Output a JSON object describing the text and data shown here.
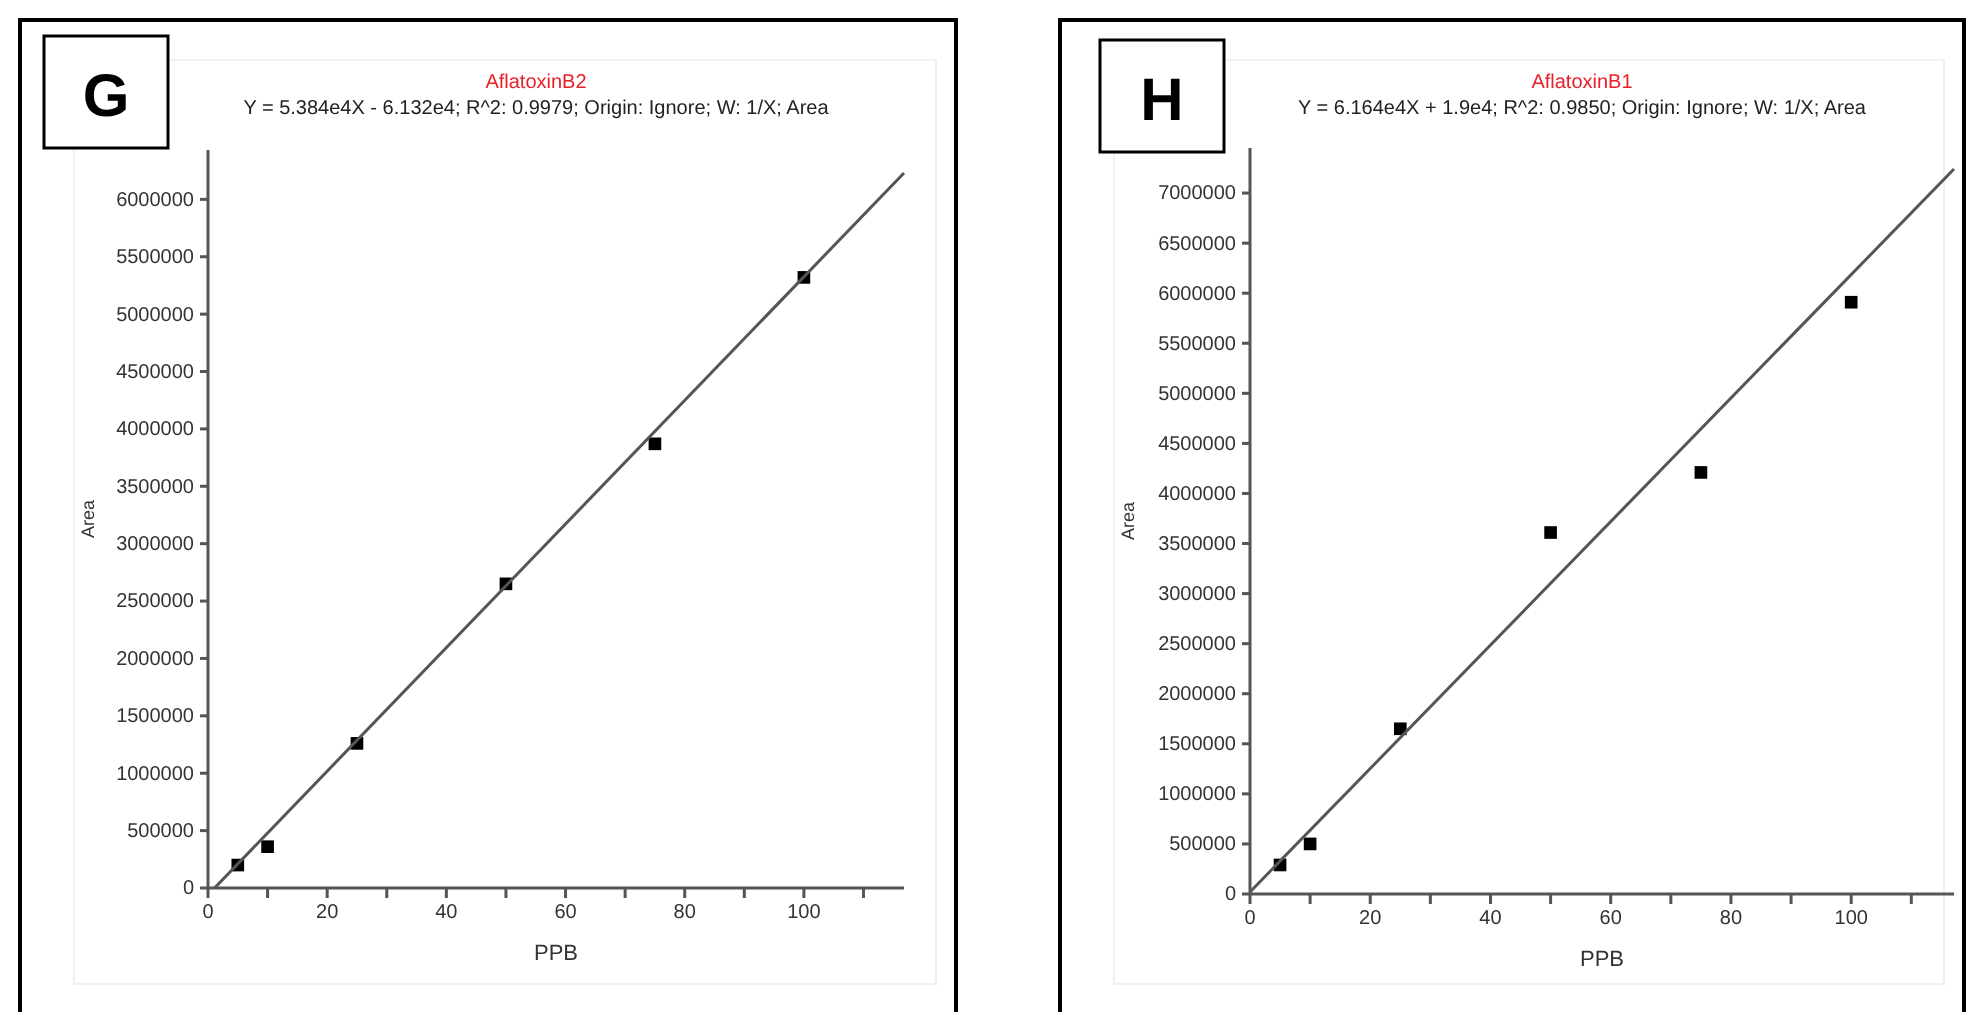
{
  "chart_data": [
    {
      "type": "scatter",
      "title": "AflatoxinB2",
      "subtitle": "Y = 5.384e4X - 6.132e4; R^2: 0.9979; Origin: Ignore; W: 1/X; Area",
      "xlabel": "PPB",
      "ylabel": "Area",
      "annotations": [
        "G"
      ],
      "grid": false,
      "xlim": [
        0,
        116.8
      ],
      "ylim": [
        0,
        6430000
      ],
      "xticks": [
        0,
        {
          "value": 10,
          "label": null
        },
        20,
        {
          "value": 30,
          "label": null
        },
        40,
        {
          "value": 50,
          "label": null
        },
        60,
        {
          "value": 70,
          "label": null
        },
        80,
        {
          "value": 90,
          "label": null
        },
        100,
        {
          "value": 110,
          "label": null
        }
      ],
      "yticks": [
        0,
        500000,
        1000000,
        1500000,
        2000000,
        2500000,
        3000000,
        3500000,
        4000000,
        4500000,
        5000000,
        5500000,
        6000000
      ],
      "series": [
        {
          "marker": "square",
          "color": "#000000",
          "x": [
            5,
            10,
            25,
            50,
            75,
            100
          ],
          "values": [
            200000,
            360000,
            1260000,
            2650000,
            3870000,
            5320000
          ]
        },
        {
          "type": "line",
          "color": "#555555",
          "x": [
            1.1,
            116.8
          ],
          "values": [
            0,
            6230000
          ]
        }
      ]
    },
    {
      "type": "scatter",
      "title": "AflatoxinB1",
      "subtitle": "Y = 6.164e4X + 1.9e4; R^2: 0.9850; Origin: Ignore; W: 1/X; Area",
      "xlabel": "PPB",
      "ylabel": "Area",
      "annotations": [
        "H"
      ],
      "grid": false,
      "xlim": [
        0,
        117.1
      ],
      "ylim": [
        0,
        7450000
      ],
      "xticks": [
        0,
        {
          "value": 10,
          "label": null
        },
        20,
        {
          "value": 30,
          "label": null
        },
        40,
        {
          "value": 50,
          "label": null
        },
        60,
        {
          "value": 70,
          "label": null
        },
        80,
        {
          "value": 90,
          "label": null
        },
        100,
        {
          "value": 110,
          "label": null
        }
      ],
      "yticks": [
        0,
        500000,
        1000000,
        1500000,
        2000000,
        2500000,
        3000000,
        3500000,
        4000000,
        4500000,
        5000000,
        5500000,
        6000000,
        6500000,
        7000000
      ],
      "series": [
        {
          "marker": "square",
          "color": "#000000",
          "x": [
            5,
            10,
            25,
            50,
            75,
            100
          ],
          "values": [
            290000,
            500000,
            1650000,
            3610000,
            4210000,
            5910000
          ]
        },
        {
          "type": "line",
          "color": "#555555",
          "x": [
            0,
            117.1
          ],
          "values": [
            20000,
            7240000
          ]
        }
      ]
    }
  ]
}
